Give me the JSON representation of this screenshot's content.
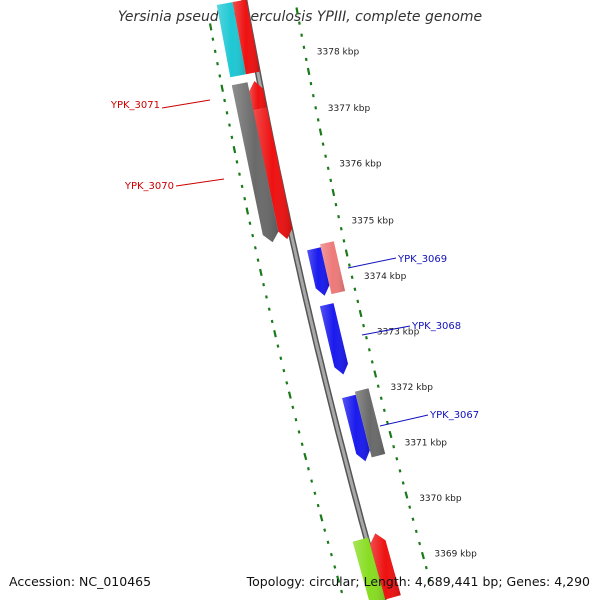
{
  "title": "Yersinia pseudotuberculosis YPIII, complete genome",
  "footer": {
    "accession": "Accession: NC_010465",
    "summary": "Topology: circular; Length: 4,689,441 bp; Genes: 4,290"
  },
  "colors": {
    "backbone": "#8c8c8c",
    "ticks": "#1a7a1a",
    "tick_label": "#222222",
    "label_red": "#cc0000",
    "label_blue": "#1010bb"
  },
  "ticks": [
    {
      "label": "3378 kbp"
    },
    {
      "label": "3377 kbp"
    },
    {
      "label": "3376 kbp"
    },
    {
      "label": "3375 kbp"
    },
    {
      "label": "3374 kbp"
    },
    {
      "label": "3373 kbp"
    },
    {
      "label": "3372 kbp"
    },
    {
      "label": "3371 kbp"
    },
    {
      "label": "3370 kbp"
    },
    {
      "label": "3369 kbp"
    }
  ],
  "gene_labels": [
    {
      "text": "YPK_3071",
      "color": "#cc0000"
    },
    {
      "text": "YPK_3070",
      "color": "#cc0000"
    },
    {
      "text": "YPK_3069",
      "color": "#1010bb"
    },
    {
      "text": "YPK_3068",
      "color": "#1010bb"
    },
    {
      "text": "YPK_3067",
      "color": "#1010bb"
    }
  ],
  "features": [
    {
      "color": "#1ec8d4"
    },
    {
      "color": "#ee1111"
    },
    {
      "color": "#ee1111"
    },
    {
      "color": "#ee1111"
    },
    {
      "color": "#6a6a6a"
    },
    {
      "color": "#1a1aee"
    },
    {
      "color": "#ee7a7a"
    },
    {
      "color": "#1a1aee"
    },
    {
      "color": "#1a1aee"
    },
    {
      "color": "#6a6a6a"
    },
    {
      "color": "#88dd22"
    },
    {
      "color": "#ee1111"
    }
  ]
}
